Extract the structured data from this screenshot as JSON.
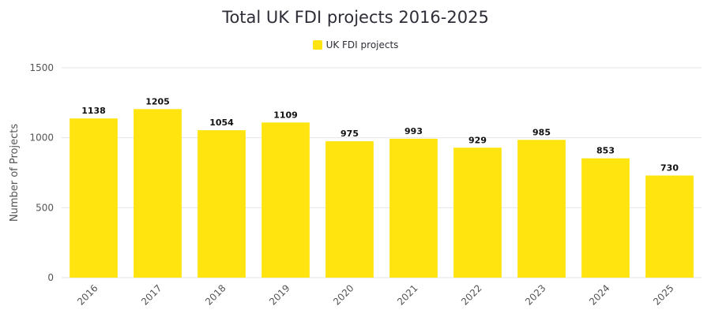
{
  "chart_data": {
    "type": "bar",
    "title": "Total UK FDI projects 2016-2025",
    "xlabel": "",
    "ylabel": "Number of Projects",
    "categories": [
      "2016",
      "2017",
      "2018",
      "2019",
      "2020",
      "2021",
      "2022",
      "2023",
      "2024",
      "2025"
    ],
    "series": [
      {
        "name": "UK FDI projects",
        "color": "#ffe40f",
        "values": [
          1138,
          1205,
          1054,
          1109,
          975,
          993,
          929,
          985,
          853,
          730
        ]
      }
    ],
    "ylim": [
      0,
      1500
    ],
    "yticks": [
      0,
      500,
      1000,
      1500
    ],
    "grid": true,
    "legend_position": "top-center"
  }
}
